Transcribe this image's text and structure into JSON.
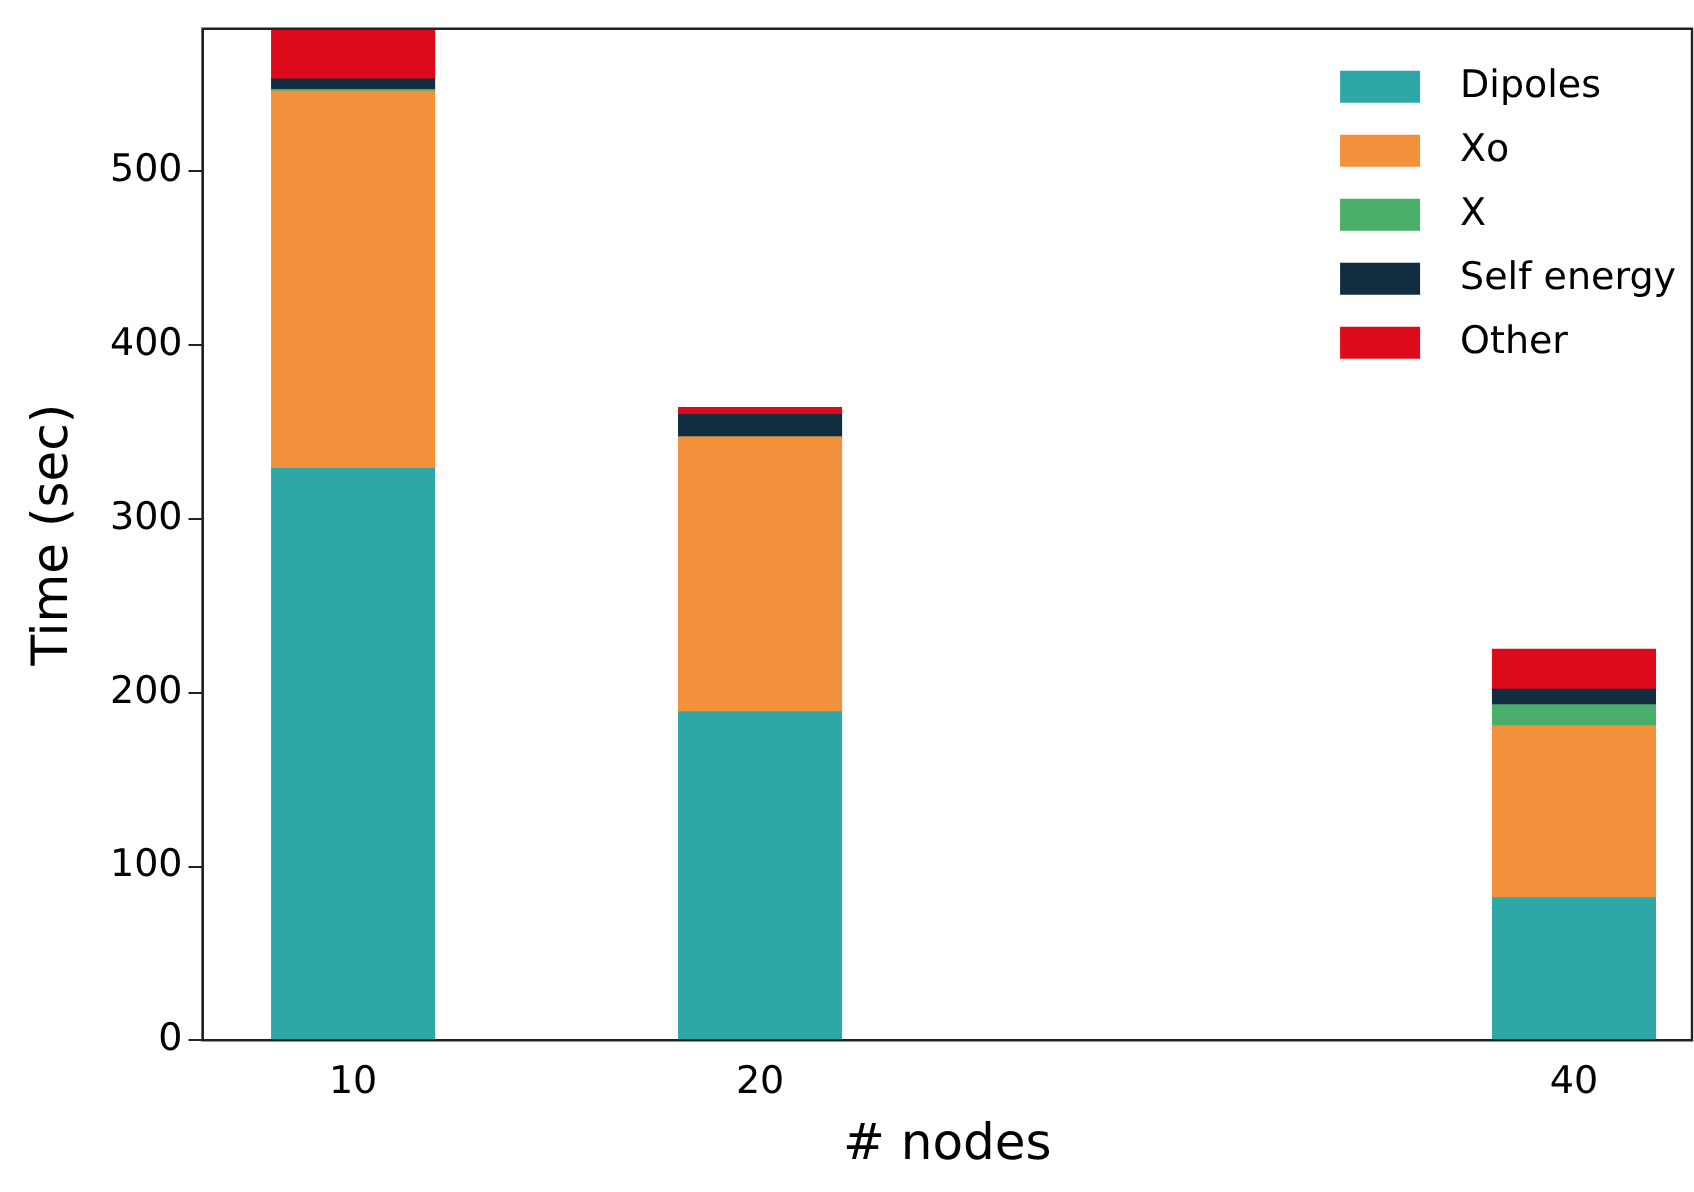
{
  "chart_data": {
    "type": "bar",
    "stacked": true,
    "xlabel": "# nodes",
    "ylabel": "Time (sec)",
    "x": [
      10,
      20,
      40
    ],
    "series": [
      {
        "name": "Dipoles",
        "color": "#2ea7a6",
        "values": [
          329,
          189,
          82
        ]
      },
      {
        "name": "Xo",
        "color": "#f2903b",
        "values": [
          217,
          158,
          99
        ]
      },
      {
        "name": "X",
        "color": "#4aae6b",
        "values": [
          1,
          0,
          12
        ]
      },
      {
        "name": "Self energy",
        "color": "#132d40",
        "values": [
          6,
          13,
          9
        ]
      },
      {
        "name": "Other",
        "color": "#dc0a1a",
        "values": [
          29,
          4,
          23
        ]
      }
    ],
    "xlim": [
      6.3,
      42.9
    ],
    "xticks": [
      10,
      20,
      40
    ],
    "ylim": [
      0,
      582
    ],
    "yticks": [
      0,
      100,
      200,
      300,
      400,
      500
    ],
    "grid": false,
    "legend": "top right"
  }
}
